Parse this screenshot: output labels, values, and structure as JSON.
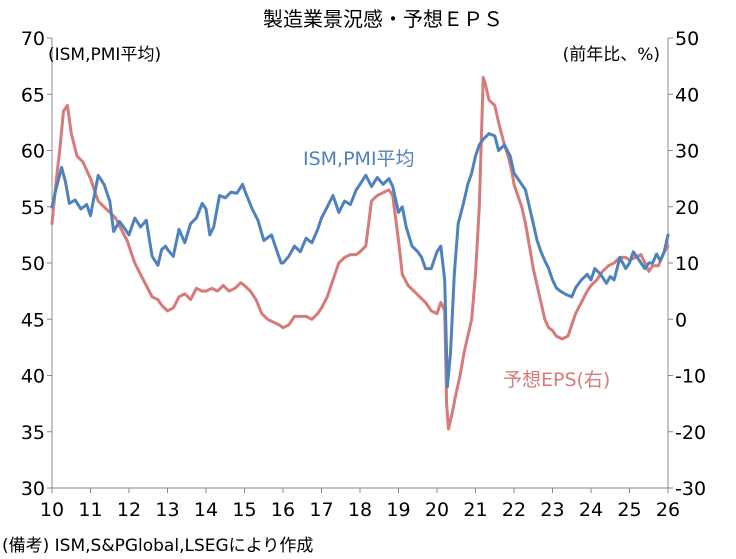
{
  "chart_data": {
    "type": "line",
    "title": "製造業景況感・予想ＥＰＳ",
    "left_axis_unit": "(ISM,PMI平均)",
    "right_axis_unit": "(前年比、%)",
    "source_note": "(備考) ISM,S&PGlobal,LSEGにより作成",
    "x_tick_labels": [
      "10",
      "11",
      "12",
      "13",
      "14",
      "15",
      "16",
      "17",
      "18",
      "19",
      "20",
      "21",
      "22",
      "23",
      "24",
      "25",
      "26"
    ],
    "xlim": [
      2010,
      2026
    ],
    "ylim_left": [
      30,
      70
    ],
    "ylim_right": [
      -30,
      50
    ],
    "left_ticks": [
      30,
      35,
      40,
      45,
      50,
      55,
      60,
      65,
      70
    ],
    "right_ticks": [
      -30,
      -20,
      -10,
      0,
      10,
      20,
      30,
      40,
      50
    ],
    "grid": false,
    "series": [
      {
        "name": "ISM,PMI平均",
        "axis": "left",
        "color": "#4f81bd",
        "points": [
          [
            2010.0,
            55.0
          ],
          [
            2010.1,
            56.5
          ],
          [
            2010.25,
            58.5
          ],
          [
            2010.35,
            57.2
          ],
          [
            2010.45,
            55.3
          ],
          [
            2010.6,
            55.6
          ],
          [
            2010.75,
            54.8
          ],
          [
            2010.9,
            55.2
          ],
          [
            2011.0,
            54.2
          ],
          [
            2011.1,
            56.0
          ],
          [
            2011.2,
            57.8
          ],
          [
            2011.35,
            57.0
          ],
          [
            2011.5,
            55.5
          ],
          [
            2011.6,
            52.8
          ],
          [
            2011.75,
            53.7
          ],
          [
            2011.9,
            53.0
          ],
          [
            2012.0,
            52.5
          ],
          [
            2012.15,
            54.0
          ],
          [
            2012.3,
            53.2
          ],
          [
            2012.45,
            53.8
          ],
          [
            2012.6,
            50.6
          ],
          [
            2012.75,
            49.8
          ],
          [
            2012.85,
            51.2
          ],
          [
            2012.95,
            51.5
          ],
          [
            2013.0,
            51.2
          ],
          [
            2013.15,
            50.6
          ],
          [
            2013.3,
            53.0
          ],
          [
            2013.45,
            51.8
          ],
          [
            2013.6,
            53.5
          ],
          [
            2013.75,
            54.0
          ],
          [
            2013.9,
            55.3
          ],
          [
            2014.0,
            54.8
          ],
          [
            2014.1,
            52.5
          ],
          [
            2014.2,
            53.2
          ],
          [
            2014.35,
            56.0
          ],
          [
            2014.5,
            55.8
          ],
          [
            2014.65,
            56.3
          ],
          [
            2014.8,
            56.2
          ],
          [
            2014.95,
            57.0
          ],
          [
            2015.0,
            56.5
          ],
          [
            2015.2,
            54.8
          ],
          [
            2015.35,
            53.8
          ],
          [
            2015.5,
            52.0
          ],
          [
            2015.7,
            52.5
          ],
          [
            2015.85,
            51.0
          ],
          [
            2015.95,
            50.0
          ],
          [
            2016.0,
            50.0
          ],
          [
            2016.15,
            50.6
          ],
          [
            2016.3,
            51.5
          ],
          [
            2016.45,
            51.0
          ],
          [
            2016.6,
            52.2
          ],
          [
            2016.75,
            51.8
          ],
          [
            2016.9,
            53.0
          ],
          [
            2017.0,
            54.0
          ],
          [
            2017.15,
            55.0
          ],
          [
            2017.3,
            56.0
          ],
          [
            2017.45,
            54.5
          ],
          [
            2017.6,
            55.5
          ],
          [
            2017.75,
            55.2
          ],
          [
            2017.9,
            56.5
          ],
          [
            2018.0,
            57.0
          ],
          [
            2018.15,
            57.8
          ],
          [
            2018.3,
            56.8
          ],
          [
            2018.45,
            57.6
          ],
          [
            2018.6,
            57.0
          ],
          [
            2018.75,
            57.5
          ],
          [
            2018.85,
            56.8
          ],
          [
            2019.0,
            54.5
          ],
          [
            2019.1,
            55.0
          ],
          [
            2019.2,
            53.2
          ],
          [
            2019.35,
            51.5
          ],
          [
            2019.5,
            51.0
          ],
          [
            2019.6,
            50.5
          ],
          [
            2019.7,
            49.5
          ],
          [
            2019.85,
            49.5
          ],
          [
            2020.0,
            51.0
          ],
          [
            2020.1,
            51.5
          ],
          [
            2020.2,
            48.5
          ],
          [
            2020.27,
            39.0
          ],
          [
            2020.35,
            42.0
          ],
          [
            2020.45,
            49.0
          ],
          [
            2020.55,
            53.5
          ],
          [
            2020.7,
            55.5
          ],
          [
            2020.8,
            57.0
          ],
          [
            2020.9,
            58.0
          ],
          [
            2021.0,
            59.5
          ],
          [
            2021.1,
            60.5
          ],
          [
            2021.2,
            61.0
          ],
          [
            2021.35,
            61.5
          ],
          [
            2021.5,
            61.3
          ],
          [
            2021.6,
            60.0
          ],
          [
            2021.75,
            60.5
          ],
          [
            2021.9,
            59.5
          ],
          [
            2022.0,
            58.0
          ],
          [
            2022.1,
            57.5
          ],
          [
            2022.2,
            57.0
          ],
          [
            2022.3,
            56.5
          ],
          [
            2022.4,
            55.0
          ],
          [
            2022.5,
            53.5
          ],
          [
            2022.6,
            52.0
          ],
          [
            2022.7,
            51.0
          ],
          [
            2022.8,
            50.2
          ],
          [
            2022.9,
            49.5
          ],
          [
            2023.0,
            48.5
          ],
          [
            2023.1,
            47.8
          ],
          [
            2023.2,
            47.5
          ],
          [
            2023.35,
            47.2
          ],
          [
            2023.5,
            47.0
          ],
          [
            2023.6,
            47.8
          ],
          [
            2023.75,
            48.5
          ],
          [
            2023.9,
            49.0
          ],
          [
            2024.0,
            48.5
          ],
          [
            2024.1,
            49.5
          ],
          [
            2024.25,
            49.0
          ],
          [
            2024.4,
            48.2
          ],
          [
            2024.5,
            48.8
          ],
          [
            2024.6,
            48.5
          ],
          [
            2024.75,
            50.5
          ],
          [
            2024.9,
            49.5
          ],
          [
            2025.0,
            50.0
          ],
          [
            2025.1,
            51.0
          ],
          [
            2025.2,
            50.5
          ],
          [
            2025.3,
            50.0
          ],
          [
            2025.4,
            49.5
          ],
          [
            2025.5,
            50.0
          ],
          [
            2025.6,
            50.0
          ],
          [
            2025.7,
            50.8
          ],
          [
            2025.8,
            50.2
          ],
          [
            2025.9,
            51.0
          ],
          [
            2026.0,
            52.5
          ]
        ]
      },
      {
        "name": "予想EPS(右)",
        "axis": "right",
        "color": "#d67a7a",
        "points": [
          [
            2010.0,
            17.0
          ],
          [
            2010.1,
            24.0
          ],
          [
            2010.2,
            30.0
          ],
          [
            2010.3,
            37.0
          ],
          [
            2010.4,
            38.0
          ],
          [
            2010.5,
            33.0
          ],
          [
            2010.65,
            29.0
          ],
          [
            2010.8,
            28.0
          ],
          [
            2011.0,
            25.0
          ],
          [
            2011.1,
            23.0
          ],
          [
            2011.2,
            21.0
          ],
          [
            2011.35,
            20.0
          ],
          [
            2011.5,
            19.0
          ],
          [
            2011.65,
            18.0
          ],
          [
            2011.8,
            16.0
          ],
          [
            2011.95,
            14.0
          ],
          [
            2012.0,
            13.0
          ],
          [
            2012.15,
            10.0
          ],
          [
            2012.3,
            8.0
          ],
          [
            2012.45,
            6.0
          ],
          [
            2012.6,
            4.0
          ],
          [
            2012.75,
            3.5
          ],
          [
            2012.85,
            2.5
          ],
          [
            2013.0,
            1.5
          ],
          [
            2013.15,
            2.0
          ],
          [
            2013.3,
            4.0
          ],
          [
            2013.45,
            4.5
          ],
          [
            2013.6,
            3.5
          ],
          [
            2013.75,
            5.5
          ],
          [
            2013.9,
            5.0
          ],
          [
            2014.0,
            5.0
          ],
          [
            2014.15,
            5.5
          ],
          [
            2014.3,
            5.0
          ],
          [
            2014.45,
            6.0
          ],
          [
            2014.6,
            5.0
          ],
          [
            2014.75,
            5.5
          ],
          [
            2014.9,
            6.5
          ],
          [
            2015.0,
            6.0
          ],
          [
            2015.15,
            5.0
          ],
          [
            2015.3,
            3.5
          ],
          [
            2015.45,
            1.0
          ],
          [
            2015.6,
            0.0
          ],
          [
            2015.75,
            -0.5
          ],
          [
            2015.9,
            -1.0
          ],
          [
            2016.0,
            -1.5
          ],
          [
            2016.15,
            -1.0
          ],
          [
            2016.3,
            0.5
          ],
          [
            2016.45,
            0.5
          ],
          [
            2016.6,
            0.5
          ],
          [
            2016.75,
            0.0
          ],
          [
            2016.9,
            1.0
          ],
          [
            2017.0,
            2.0
          ],
          [
            2017.15,
            4.0
          ],
          [
            2017.3,
            7.0
          ],
          [
            2017.45,
            10.0
          ],
          [
            2017.6,
            11.0
          ],
          [
            2017.75,
            11.5
          ],
          [
            2017.9,
            11.5
          ],
          [
            2018.0,
            12.0
          ],
          [
            2018.15,
            13.0
          ],
          [
            2018.3,
            21.0
          ],
          [
            2018.45,
            22.0
          ],
          [
            2018.6,
            22.5
          ],
          [
            2018.75,
            23.0
          ],
          [
            2018.85,
            22.0
          ],
          [
            2019.0,
            14.0
          ],
          [
            2019.1,
            8.0
          ],
          [
            2019.25,
            6.0
          ],
          [
            2019.4,
            5.0
          ],
          [
            2019.55,
            4.0
          ],
          [
            2019.7,
            3.0
          ],
          [
            2019.85,
            1.5
          ],
          [
            2020.0,
            1.0
          ],
          [
            2020.1,
            3.0
          ],
          [
            2020.2,
            1.5
          ],
          [
            2020.25,
            -15.0
          ],
          [
            2020.3,
            -19.5
          ],
          [
            2020.4,
            -16.5
          ],
          [
            2020.5,
            -13.0
          ],
          [
            2020.6,
            -10.0
          ],
          [
            2020.7,
            -6.0
          ],
          [
            2020.8,
            -3.0
          ],
          [
            2020.9,
            0.0
          ],
          [
            2021.0,
            8.0
          ],
          [
            2021.1,
            20.0
          ],
          [
            2021.2,
            43.0
          ],
          [
            2021.25,
            42.0
          ],
          [
            2021.35,
            39.0
          ],
          [
            2021.5,
            38.0
          ],
          [
            2021.6,
            35.0
          ],
          [
            2021.75,
            31.0
          ],
          [
            2021.85,
            29.0
          ],
          [
            2021.95,
            26.0
          ],
          [
            2022.0,
            24.0
          ],
          [
            2022.1,
            22.0
          ],
          [
            2022.2,
            20.0
          ],
          [
            2022.3,
            17.0
          ],
          [
            2022.4,
            13.0
          ],
          [
            2022.5,
            9.0
          ],
          [
            2022.6,
            6.0
          ],
          [
            2022.7,
            3.0
          ],
          [
            2022.8,
            0.0
          ],
          [
            2022.9,
            -1.5
          ],
          [
            2023.0,
            -2.0
          ],
          [
            2023.1,
            -3.0
          ],
          [
            2023.25,
            -3.5
          ],
          [
            2023.4,
            -3.0
          ],
          [
            2023.5,
            -1.0
          ],
          [
            2023.6,
            1.0
          ],
          [
            2023.75,
            3.0
          ],
          [
            2023.9,
            5.0
          ],
          [
            2024.0,
            6.0
          ],
          [
            2024.15,
            7.0
          ],
          [
            2024.3,
            8.5
          ],
          [
            2024.45,
            9.5
          ],
          [
            2024.6,
            10.0
          ],
          [
            2024.75,
            11.0
          ],
          [
            2024.9,
            11.0
          ],
          [
            2025.0,
            10.5
          ],
          [
            2025.15,
            11.0
          ],
          [
            2025.3,
            11.5
          ],
          [
            2025.4,
            10.0
          ],
          [
            2025.5,
            8.5
          ],
          [
            2025.6,
            9.5
          ],
          [
            2025.75,
            9.5
          ],
          [
            2025.9,
            12.0
          ],
          [
            2026.0,
            13.0
          ]
        ]
      }
    ]
  }
}
